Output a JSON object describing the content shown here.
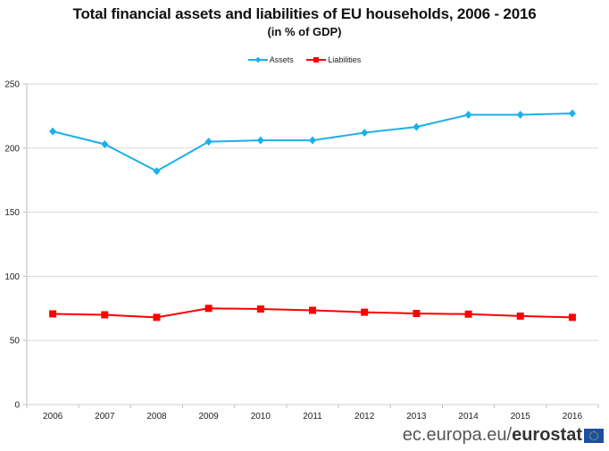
{
  "chart_data": {
    "type": "line",
    "title": "Total financial assets and liabilities of EU households, 2006 - 2016",
    "subtitle": "(in % of GDP)",
    "xlabel": "",
    "ylabel": "",
    "categories": [
      "2006",
      "2007",
      "2008",
      "2009",
      "2010",
      "2011",
      "2012",
      "2013",
      "2014",
      "2015",
      "2016"
    ],
    "series": [
      {
        "name": "Assets",
        "color": "#1ab0ec",
        "marker": "diamond",
        "values": [
          213,
          203,
          182,
          205,
          206,
          206,
          212,
          216.5,
          226,
          226,
          227
        ]
      },
      {
        "name": "Liabilities",
        "color": "#ff0000",
        "marker": "square",
        "values": [
          70.7,
          70,
          68,
          75,
          74.5,
          73.5,
          72,
          71,
          70.5,
          69,
          68
        ]
      }
    ],
    "ylim": [
      0,
      250
    ],
    "yticks": [
      0,
      50,
      100,
      150,
      200,
      250
    ],
    "grid": true,
    "legend": "top-center"
  },
  "footer": {
    "site": "ec.europa.eu/",
    "brand": "eurostat"
  }
}
